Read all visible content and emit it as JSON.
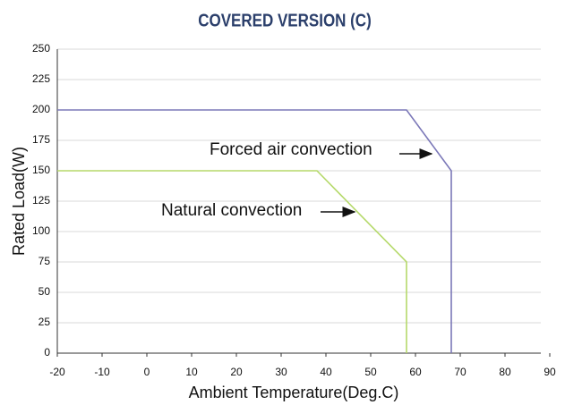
{
  "chart_data": {
    "type": "line",
    "title": "COVERED VERSION (C)",
    "xlabel": "Ambient Temperature(Deg.C)",
    "ylabel": "Rated Load(W)",
    "series": [
      {
        "name": "Forced air convection",
        "color": "#7b78b8",
        "x": [
          -20,
          58,
          68,
          68
        ],
        "values": [
          200,
          200,
          150,
          0
        ]
      },
      {
        "name": "Natural convection",
        "color": "#b5d96a",
        "x": [
          -20,
          38,
          58,
          58
        ],
        "values": [
          150,
          150,
          75,
          0
        ]
      }
    ],
    "annotations": [
      "Forced air convection",
      "Natural convection"
    ],
    "xlim": [
      -20,
      90
    ],
    "xticks": [
      -20,
      -10,
      0,
      10,
      20,
      30,
      40,
      50,
      60,
      70,
      80,
      90
    ],
    "ylim": [
      0,
      250
    ],
    "yticks": [
      0,
      25,
      50,
      75,
      100,
      125,
      150,
      175,
      200,
      225,
      250
    ],
    "grid": true
  }
}
